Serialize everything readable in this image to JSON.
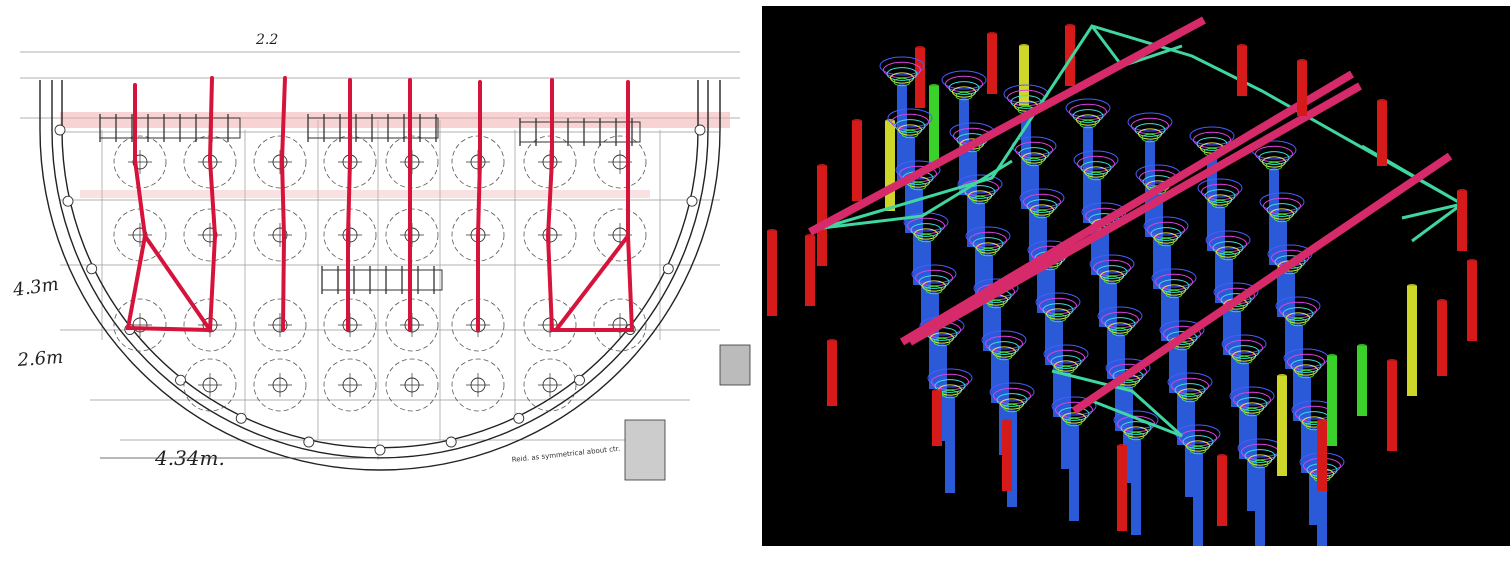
{
  "drawing": {
    "dim_43": "4.3m",
    "dim_26": "2.6m",
    "dim_434": "4.34m.",
    "dim_22": "2.2",
    "note_symmetry": "Reid. as symmetrical about ctr.",
    "colors": {
      "strut": "#d6133a",
      "line": "#222222",
      "faint_red": "#f0a8a8"
    }
  },
  "model3d": {
    "colors": {
      "background": "#000000",
      "outer_column": "#d61a1a",
      "inner_column": "#2a5ad8",
      "yellow_column": "#cfd62a",
      "green_column": "#3ad22a",
      "beam": "#d62a6a",
      "brace": "#3fd6a0"
    }
  }
}
